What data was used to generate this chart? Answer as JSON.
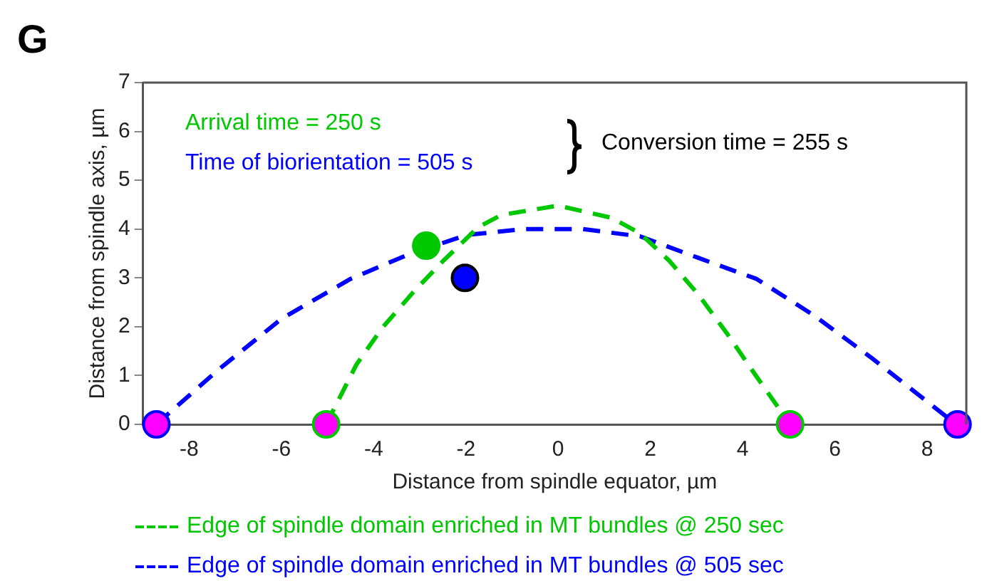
{
  "chart_data": {
    "type": "line",
    "xlabel": "Distance from spindle equator, µm",
    "ylabel": "Distance from spindle axis, µm",
    "xlim": [
      -9,
      8.85
    ],
    "xticks": [
      -8,
      -6,
      -4,
      -2,
      0,
      2,
      4,
      6,
      8
    ],
    "ylim": [
      0,
      7
    ],
    "yticks": [
      0,
      1,
      2,
      3,
      4,
      5,
      6,
      7
    ],
    "grid": false,
    "legend": "bottom",
    "line_style": "dashed",
    "series": [
      {
        "name": "Edge of spindle domain enriched in MT bundles @ 250 sec",
        "type": "line",
        "color": "#00c800",
        "x": [
          -5.03,
          -4.37,
          -3.81,
          -3.12,
          -2.49,
          -1.73,
          -1.23,
          0,
          1.16,
          1.78,
          2.41,
          3.04,
          3.67,
          4.3,
          5.03
        ],
        "values": [
          0,
          1.23,
          1.98,
          2.73,
          3.35,
          4.04,
          4.29,
          4.48,
          4.23,
          3.91,
          3.35,
          2.66,
          1.85,
          0.98,
          0
        ]
      },
      {
        "name": "Edge of spindle domain enriched in MT bundles @ 505 sec",
        "type": "line",
        "color": "#0000ff",
        "x": [
          -8.71,
          -7.39,
          -6.0,
          -4.5,
          -3.24,
          -1.98,
          -0.73,
          0.53,
          1.78,
          3.04,
          4.3,
          5.55,
          6.81,
          8.63
        ],
        "values": [
          0,
          1.1,
          2.16,
          2.98,
          3.48,
          3.88,
          4.0,
          4.0,
          3.85,
          3.41,
          2.98,
          2.23,
          1.35,
          0
        ]
      },
      {
        "type": "scatter",
        "marker": "circle",
        "color": "#00c800",
        "x": [
          -2.86
        ],
        "values": [
          3.66
        ]
      },
      {
        "type": "scatter",
        "marker": "circle",
        "color": "#0000ff",
        "x": [
          -2.02
        ],
        "values": [
          3.0
        ]
      },
      {
        "type": "scatter",
        "marker": "circle",
        "color": "#ff00ff",
        "x": [
          -5.03,
          5.03
        ],
        "values": [
          0,
          0
        ]
      },
      {
        "type": "scatter",
        "marker": "circle",
        "color": "#ff00ff",
        "x": [
          -8.71,
          8.66
        ],
        "values": [
          0,
          0
        ]
      }
    ],
    "annotations": [
      "Arrival time = 250 s",
      "Time of biorientation = 505 s",
      "Conversion time = 255 s",
      "G"
    ]
  }
}
